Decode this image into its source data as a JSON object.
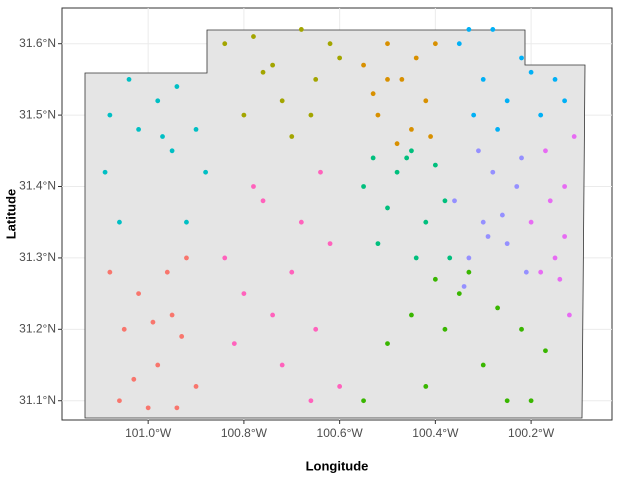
{
  "chart_data": {
    "type": "scatter",
    "x_label": "Longitude",
    "y_label": "Latitude",
    "xlim": [
      -101.18,
      -100.031
    ],
    "ylim": [
      31.073,
      31.65
    ],
    "xticks": [
      {
        "value": -101.0,
        "label": "101.0°W"
      },
      {
        "value": -100.8,
        "label": "100.8°W"
      },
      {
        "value": -100.6,
        "label": "100.6°W"
      },
      {
        "value": -100.4,
        "label": "100.4°W"
      },
      {
        "value": -100.2,
        "label": "100.2°W"
      }
    ],
    "yticks": [
      {
        "value": 31.1,
        "label": "31.1°N"
      },
      {
        "value": 31.2,
        "label": "31.2°N"
      },
      {
        "value": 31.3,
        "label": "31.3°N"
      },
      {
        "value": 31.4,
        "label": "31.4°N"
      },
      {
        "value": 31.5,
        "label": "31.5°N"
      },
      {
        "value": 31.6,
        "label": "31.6°N"
      }
    ],
    "grid": true,
    "series": [
      {
        "color": "#F8766D",
        "x": [
          -101.08,
          -101.05,
          -101.02,
          -100.98,
          -100.95,
          -100.92,
          -100.9,
          -101.06,
          -101.0,
          -100.96,
          -100.93,
          -101.03,
          -100.99,
          -100.94
        ],
        "values": [
          31.28,
          31.2,
          31.25,
          31.15,
          31.22,
          31.3,
          31.12,
          31.1,
          31.09,
          31.28,
          31.19,
          31.13,
          31.21,
          31.09
        ]
      },
      {
        "color": "#D89000",
        "x": [
          -100.55,
          -100.52,
          -100.5,
          -100.47,
          -100.45,
          -100.42,
          -100.4,
          -100.48,
          -100.53,
          -100.44,
          -100.41,
          -100.5
        ],
        "values": [
          31.57,
          31.5,
          31.6,
          31.55,
          31.48,
          31.52,
          31.6,
          31.46,
          31.53,
          31.58,
          31.47,
          31.55
        ]
      },
      {
        "color": "#A3A500",
        "x": [
          -100.84,
          -100.8,
          -100.76,
          -100.72,
          -100.68,
          -100.65,
          -100.62,
          -100.7,
          -100.78,
          -100.66,
          -100.6,
          -100.74
        ],
        "values": [
          31.6,
          31.5,
          31.56,
          31.52,
          31.62,
          31.55,
          31.6,
          31.47,
          31.61,
          31.5,
          31.58,
          31.57
        ]
      },
      {
        "color": "#39B600",
        "x": [
          -100.55,
          -100.5,
          -100.45,
          -100.42,
          -100.38,
          -100.35,
          -100.3,
          -100.27,
          -100.25,
          -100.22,
          -100.2,
          -100.17,
          -100.33,
          -100.4
        ],
        "values": [
          31.1,
          31.18,
          31.22,
          31.12,
          31.2,
          31.25,
          31.15,
          31.23,
          31.1,
          31.2,
          31.1,
          31.17,
          31.28,
          31.27
        ]
      },
      {
        "color": "#00BF7D",
        "x": [
          -100.55,
          -100.52,
          -100.48,
          -100.45,
          -100.42,
          -100.4,
          -100.37,
          -100.5,
          -100.44,
          -100.38,
          -100.53,
          -100.46
        ],
        "values": [
          31.4,
          31.32,
          31.42,
          31.45,
          31.35,
          31.43,
          31.3,
          31.37,
          31.3,
          31.38,
          31.44,
          31.44
        ]
      },
      {
        "color": "#00BFC4",
        "x": [
          -101.09,
          -101.06,
          -101.02,
          -100.98,
          -100.95,
          -100.92,
          -100.88,
          -101.04,
          -100.97,
          -100.9,
          -101.08,
          -100.94
        ],
        "values": [
          31.42,
          31.35,
          31.48,
          31.52,
          31.45,
          31.35,
          31.42,
          31.55,
          31.47,
          31.48,
          31.5,
          31.54
        ]
      },
      {
        "color": "#00B0F6",
        "x": [
          -100.35,
          -100.32,
          -100.3,
          -100.28,
          -100.25,
          -100.22,
          -100.18,
          -100.15,
          -100.13,
          -100.27,
          -100.33,
          -100.2
        ],
        "values": [
          31.6,
          31.5,
          31.55,
          31.62,
          31.52,
          31.58,
          31.5,
          31.55,
          31.52,
          31.48,
          31.62,
          31.56
        ]
      },
      {
        "color": "#9590FF",
        "x": [
          -100.36,
          -100.33,
          -100.3,
          -100.28,
          -100.25,
          -100.23,
          -100.21,
          -100.31,
          -100.26,
          -100.34,
          -100.22,
          -100.29
        ],
        "values": [
          31.38,
          31.3,
          31.35,
          31.42,
          31.32,
          31.4,
          31.28,
          31.45,
          31.36,
          31.26,
          31.44,
          31.33
        ]
      },
      {
        "color": "#E76BF3",
        "x": [
          -100.2,
          -100.17,
          -100.15,
          -100.13,
          -100.12,
          -100.16,
          -100.14,
          -100.11,
          -100.18,
          -100.13
        ],
        "values": [
          31.35,
          31.45,
          31.3,
          31.4,
          31.22,
          31.38,
          31.27,
          31.47,
          31.28,
          31.33
        ]
      },
      {
        "color": "#FF62BC",
        "x": [
          -100.84,
          -100.8,
          -100.76,
          -100.72,
          -100.68,
          -100.65,
          -100.62,
          -100.6,
          -100.78,
          -100.7,
          -100.66,
          -100.74,
          -100.82,
          -100.64
        ],
        "values": [
          31.3,
          31.25,
          31.38,
          31.15,
          31.35,
          31.2,
          31.32,
          31.12,
          31.4,
          31.28,
          31.1,
          31.22,
          31.18,
          31.42
        ]
      }
    ]
  }
}
